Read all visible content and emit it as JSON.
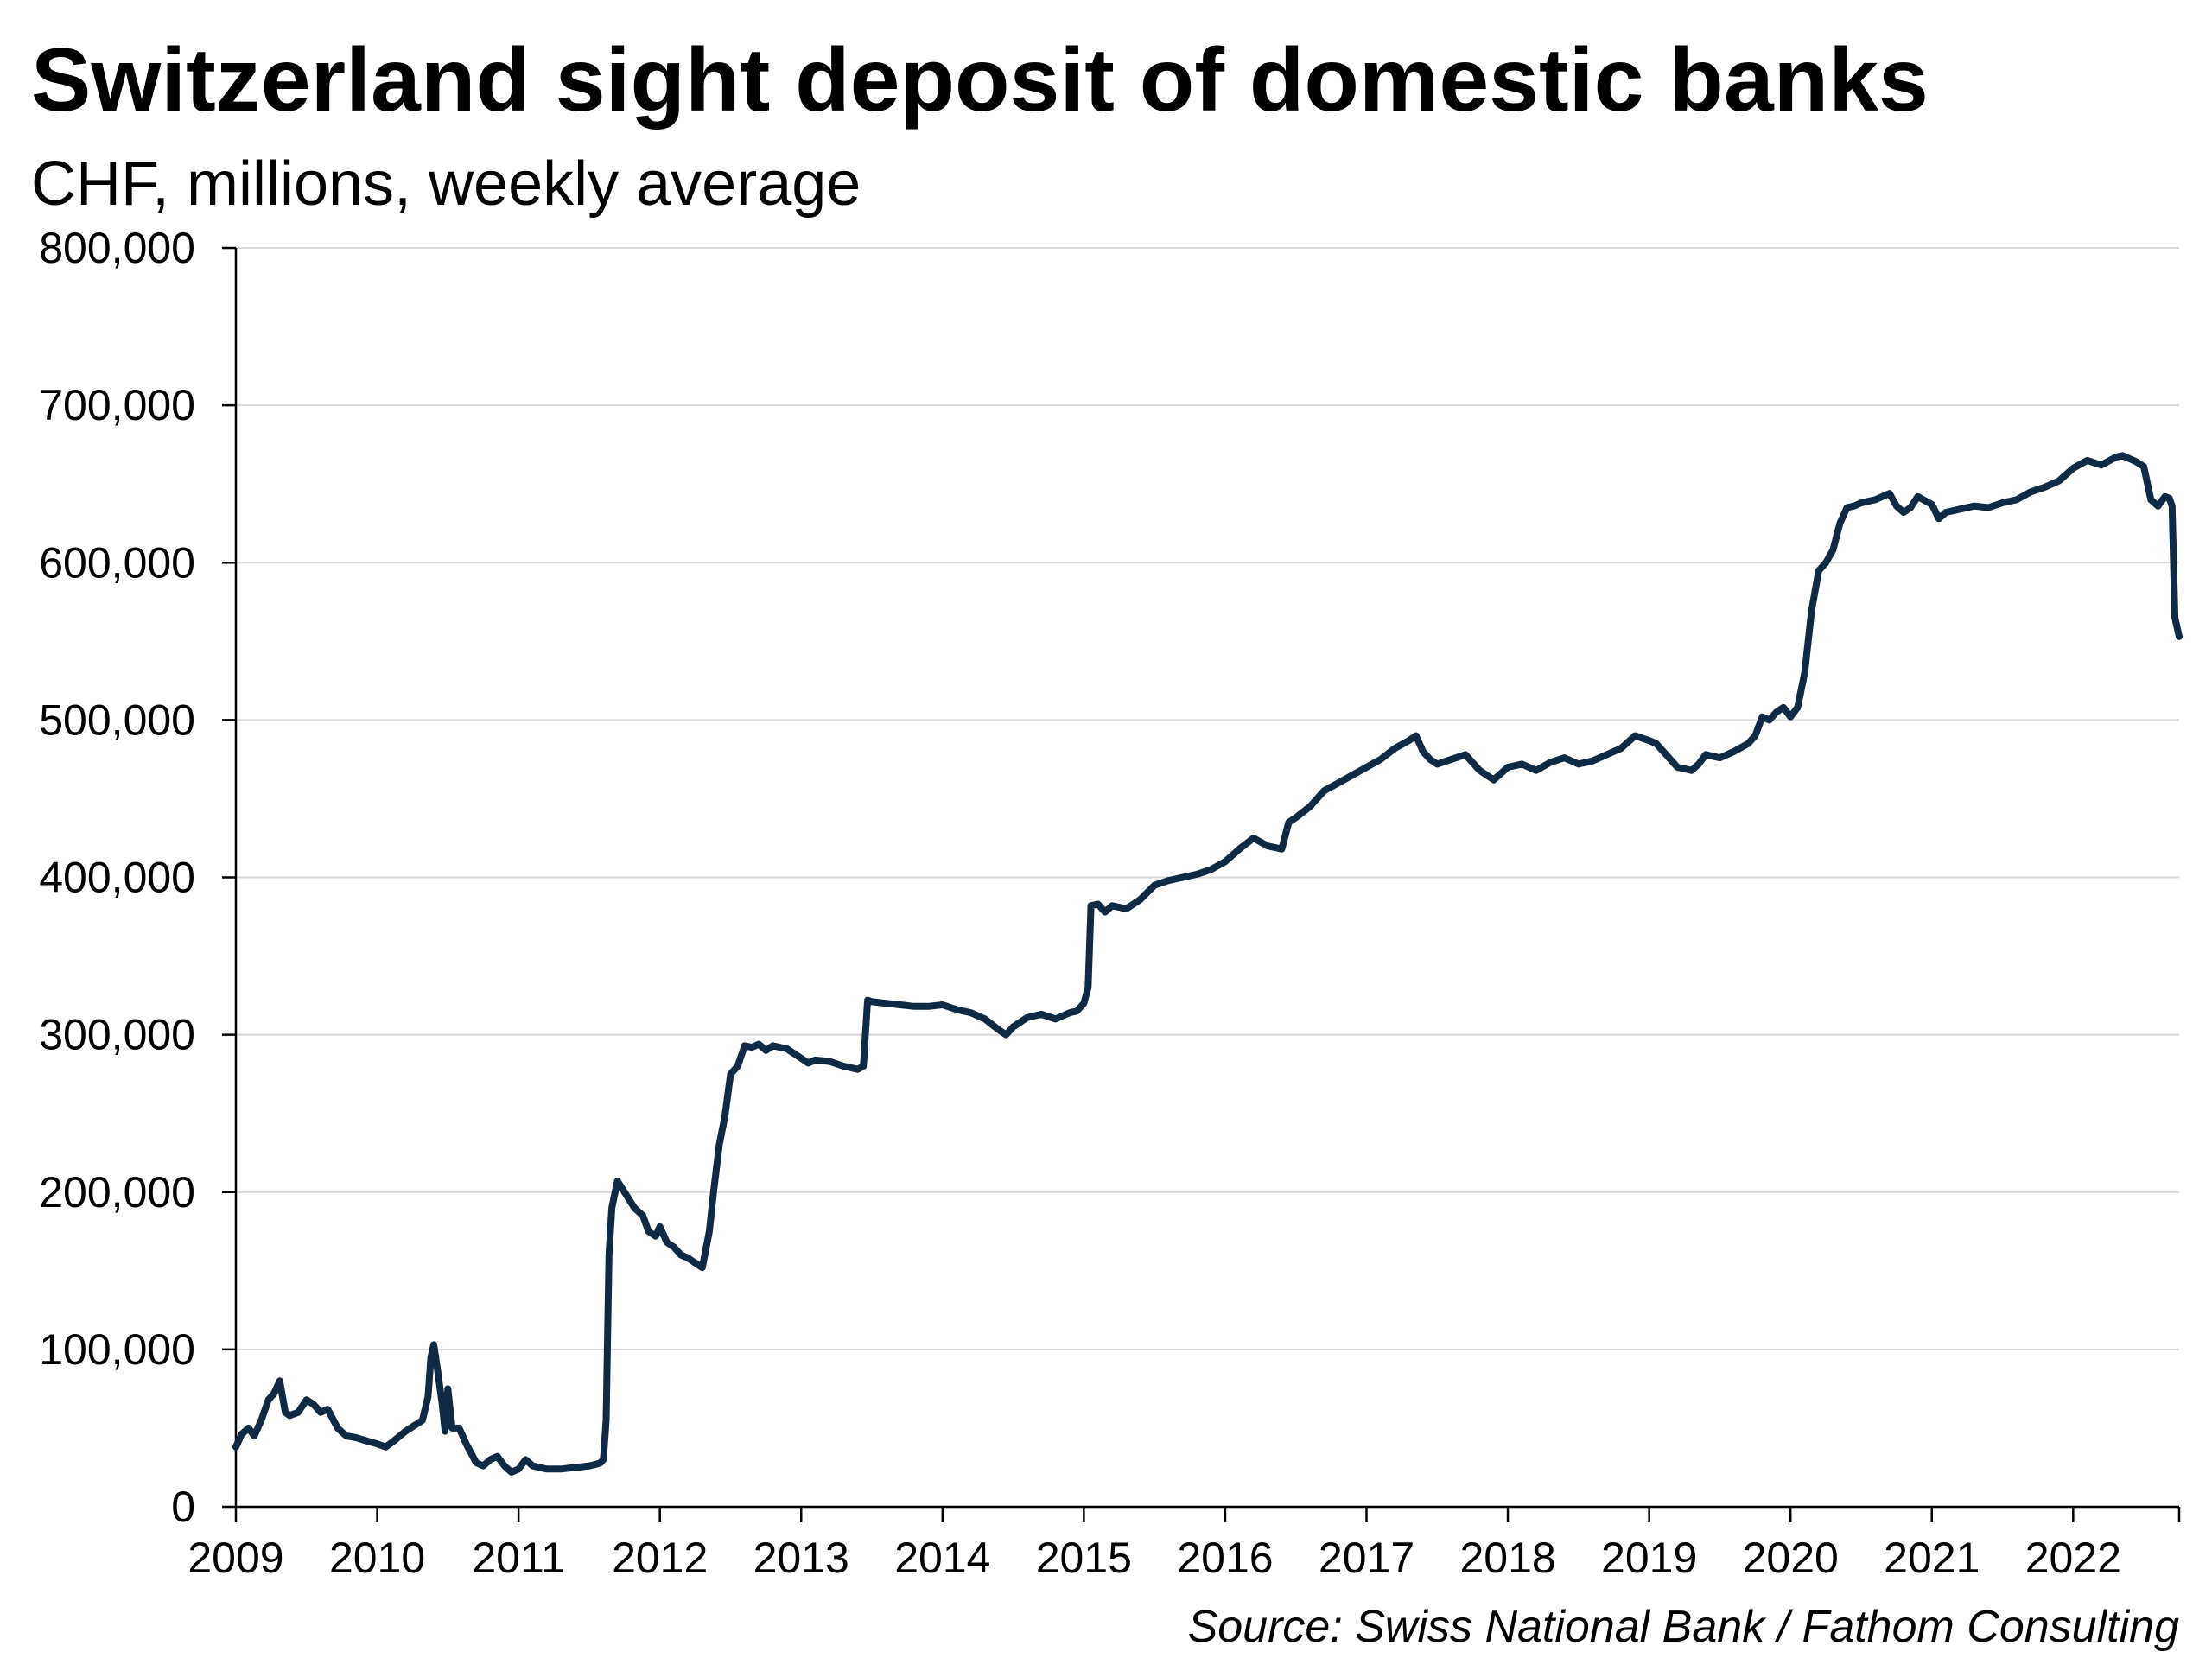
{
  "chart_data": {
    "type": "line",
    "title": "Switzerland sight deposit of domestic banks",
    "subtitle": "CHF, millions, weekly average",
    "source": "Source: Swiss National Bank / Fathom Consulting",
    "xlabel": "",
    "ylabel": "",
    "xlim": [
      2009,
      2022.75
    ],
    "ylim": [
      0,
      800000
    ],
    "x_ticks": [
      2009,
      2010,
      2011,
      2012,
      2013,
      2014,
      2015,
      2016,
      2017,
      2018,
      2019,
      2020,
      2021,
      2022
    ],
    "x_tick_labels": [
      "2009",
      "2010",
      "2011",
      "2012",
      "2013",
      "2014",
      "2015",
      "2016",
      "2017",
      "2018",
      "2019",
      "2020",
      "2021",
      "2022"
    ],
    "y_ticks": [
      0,
      100000,
      200000,
      300000,
      400000,
      500000,
      600000,
      700000,
      800000
    ],
    "y_tick_labels": [
      "0",
      "100,000",
      "200,000",
      "300,000",
      "400,000",
      "500,000",
      "600,000",
      "700,000",
      "800,000"
    ],
    "grid": true,
    "legend": "none",
    "series_color": "#0e2a45",
    "gridline_color": "#d9d9d9",
    "series": [
      {
        "x": [
          2009.0,
          2009.04,
          2009.09,
          2009.13,
          2009.18,
          2009.23,
          2009.27,
          2009.31,
          2009.35,
          2009.38,
          2009.44,
          2009.5,
          2009.55,
          2009.6,
          2009.65,
          2009.72,
          2009.78,
          2009.85,
          2009.92,
          2010.0,
          2010.06,
          2010.12,
          2010.2,
          2010.27,
          2010.32,
          2010.36,
          2010.38,
          2010.4,
          2010.43,
          2010.46,
          2010.48,
          2010.5,
          2010.53,
          2010.58,
          2010.63,
          2010.7,
          2010.75,
          2010.8,
          2010.85,
          2010.9,
          2010.95,
          2011.0,
          2011.05,
          2011.1,
          2011.2,
          2011.3,
          2011.4,
          2011.5,
          2011.55,
          2011.58,
          2011.6,
          2011.62,
          2011.64,
          2011.66,
          2011.7,
          2011.75,
          2011.82,
          2011.88,
          2011.92,
          2011.97,
          2012.0,
          2012.05,
          2012.1,
          2012.15,
          2012.2,
          2012.25,
          2012.3,
          2012.35,
          2012.38,
          2012.42,
          2012.46,
          2012.5,
          2012.55,
          2012.6,
          2012.65,
          2012.7,
          2012.75,
          2012.8,
          2012.9,
          2013.0,
          2013.05,
          2013.1,
          2013.2,
          2013.3,
          2013.4,
          2013.44,
          2013.47,
          2013.5,
          2013.6,
          2013.7,
          2013.8,
          2013.9,
          2014.0,
          2014.1,
          2014.2,
          2014.3,
          2014.4,
          2014.45,
          2014.5,
          2014.6,
          2014.7,
          2014.8,
          2014.9,
          2014.95,
          2015.0,
          2015.03,
          2015.05,
          2015.1,
          2015.15,
          2015.2,
          2015.3,
          2015.4,
          2015.5,
          2015.6,
          2015.7,
          2015.8,
          2015.9,
          2016.0,
          2016.1,
          2016.2,
          2016.3,
          2016.4,
          2016.45,
          2016.5,
          2016.6,
          2016.7,
          2016.8,
          2016.9,
          2017.0,
          2017.1,
          2017.2,
          2017.3,
          2017.35,
          2017.4,
          2017.45,
          2017.5,
          2017.6,
          2017.7,
          2017.8,
          2017.9,
          2018.0,
          2018.1,
          2018.2,
          2018.3,
          2018.4,
          2018.5,
          2018.6,
          2018.7,
          2018.8,
          2018.9,
          2019.0,
          2019.05,
          2019.1,
          2019.2,
          2019.3,
          2019.35,
          2019.4,
          2019.45,
          2019.5,
          2019.6,
          2019.7,
          2019.75,
          2019.8,
          2019.85,
          2019.9,
          2019.95,
          2020.0,
          2020.05,
          2020.1,
          2020.15,
          2020.2,
          2020.25,
          2020.3,
          2020.35,
          2020.4,
          2020.45,
          2020.5,
          2020.6,
          2020.7,
          2020.75,
          2020.8,
          2020.85,
          2020.9,
          2021.0,
          2021.05,
          2021.1,
          2021.2,
          2021.3,
          2021.4,
          2021.5,
          2021.6,
          2021.7,
          2021.8,
          2021.9,
          2022.0,
          2022.1,
          2022.2,
          2022.3,
          2022.35,
          2022.4,
          2022.45,
          2022.5,
          2022.55,
          2022.6,
          2022.65,
          2022.68,
          2022.7,
          2022.72,
          2022.75
        ],
        "values": [
          38000,
          46000,
          50000,
          45000,
          55000,
          68000,
          72000,
          80000,
          60000,
          58000,
          60000,
          68000,
          65000,
          60000,
          62000,
          50000,
          45000,
          44000,
          42000,
          40000,
          38000,
          42000,
          48000,
          52000,
          55000,
          70000,
          95000,
          103000,
          85000,
          65000,
          48000,
          75000,
          50000,
          50000,
          40000,
          28000,
          26000,
          30000,
          32000,
          26000,
          22000,
          24000,
          30000,
          26000,
          24000,
          24000,
          25000,
          26000,
          27000,
          28000,
          30000,
          55000,
          160000,
          190000,
          207000,
          200000,
          190000,
          185000,
          175000,
          172000,
          178000,
          168000,
          165000,
          160000,
          158000,
          155000,
          152000,
          175000,
          200000,
          230000,
          248000,
          275000,
          280000,
          293000,
          292000,
          294000,
          290000,
          293000,
          291000,
          285000,
          282000,
          284000,
          283000,
          280000,
          278000,
          280000,
          322000,
          321000,
          320000,
          319000,
          318000,
          318000,
          319000,
          316000,
          314000,
          310000,
          303000,
          300000,
          305000,
          311000,
          313000,
          310000,
          314000,
          315000,
          320000,
          330000,
          382000,
          383000,
          378000,
          382000,
          380000,
          386000,
          395000,
          398000,
          400000,
          402000,
          405000,
          410000,
          418000,
          425000,
          420000,
          418000,
          435000,
          438000,
          445000,
          455000,
          460000,
          465000,
          470000,
          475000,
          482000,
          487000,
          490000,
          480000,
          475000,
          472000,
          475000,
          478000,
          468000,
          462000,
          470000,
          472000,
          468000,
          473000,
          476000,
          472000,
          474000,
          478000,
          482000,
          490000,
          487000,
          485000,
          480000,
          470000,
          468000,
          472000,
          478000,
          477000,
          476000,
          480000,
          485000,
          490000,
          502000,
          500000,
          505000,
          508000,
          502000,
          508000,
          530000,
          570000,
          595000,
          600000,
          608000,
          625000,
          635000,
          636000,
          638000,
          640000,
          644000,
          636000,
          632000,
          635000,
          642000,
          637000,
          628000,
          632000,
          634000,
          636000,
          635000,
          638000,
          640000,
          645000,
          648000,
          652000,
          660000,
          665000,
          662000,
          667000,
          668000,
          666000,
          664000,
          661000,
          640000,
          636000,
          642000,
          641000,
          636000,
          565000,
          553000
        ]
      }
    ]
  }
}
